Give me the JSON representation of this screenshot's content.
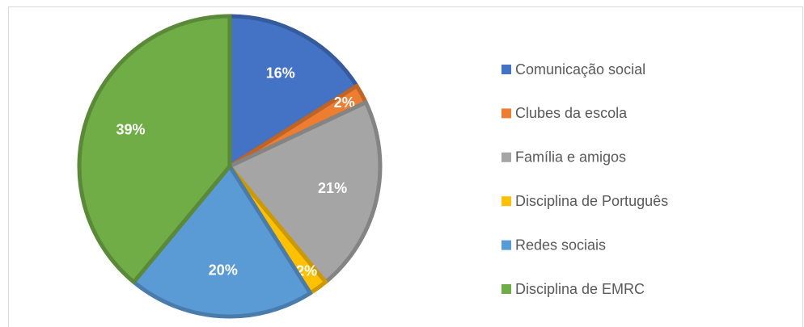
{
  "chart_data": {
    "type": "pie",
    "categories": [
      "Comunicação social",
      "Clubes da escola",
      "Família e amigos",
      "Disciplina de Português",
      "Redes sociais",
      "Disciplina de EMRC"
    ],
    "values": [
      16,
      2,
      21,
      2,
      20,
      39
    ],
    "value_labels": [
      "16%",
      "2%",
      "21%",
      "2%",
      "20%",
      "39%"
    ],
    "colors": [
      "#4472c4",
      "#ed7d31",
      "#a5a5a5",
      "#ffc000",
      "#5b9bd5",
      "#70ad47"
    ],
    "legend": "right"
  }
}
